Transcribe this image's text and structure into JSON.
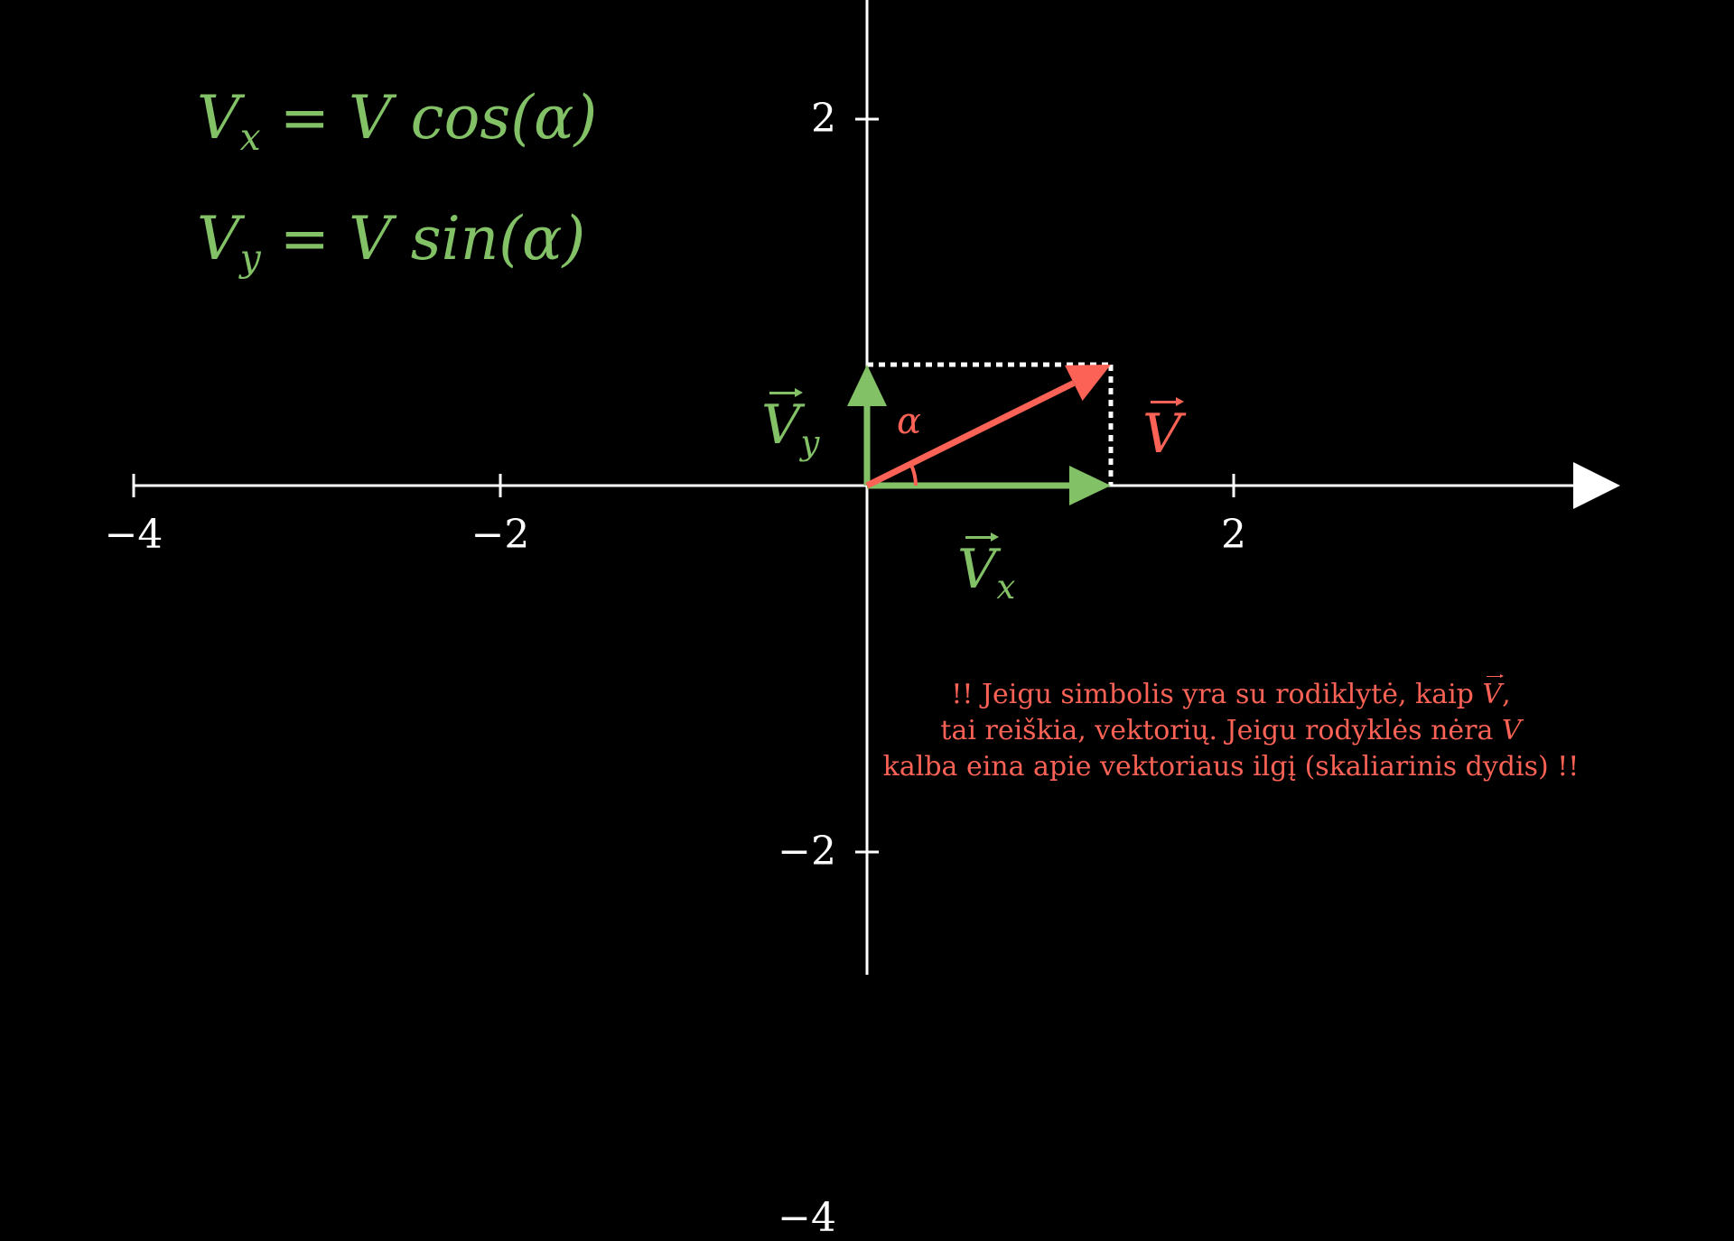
{
  "formulas": {
    "vx": {
      "lhs": "V",
      "sub": "x",
      "eq": "=",
      "rhs": "V cos(α)"
    },
    "vy": {
      "lhs": "V",
      "sub": "y",
      "eq": "=",
      "rhs": "V sin(α)"
    }
  },
  "axes": {
    "x_ticks": [
      {
        "value": -4,
        "label": "−4"
      },
      {
        "value": -2,
        "label": "−2"
      },
      {
        "value": 2,
        "label": "2"
      }
    ],
    "y_ticks": [
      {
        "value": 2,
        "label": "2"
      },
      {
        "value": -2,
        "label": "−2"
      },
      {
        "value": -4,
        "label": "−4"
      }
    ],
    "x_range": [
      -4,
      4
    ],
    "y_range": [
      -4,
      3.2
    ]
  },
  "vectors": {
    "v": {
      "label": "V",
      "color": "#fc6255",
      "from": [
        0,
        0
      ],
      "to": [
        1.33,
        0.66
      ]
    },
    "vx": {
      "label": "V",
      "sub": "x",
      "color": "#83c167",
      "from": [
        0,
        0
      ],
      "to": [
        1.33,
        0
      ]
    },
    "vy": {
      "label": "V",
      "sub": "y",
      "color": "#83c167",
      "from": [
        0,
        0
      ],
      "to": [
        0,
        0.66
      ]
    }
  },
  "angle_label": "α",
  "colors": {
    "background": "#000000",
    "axis": "#ffffff",
    "green": "#83c167",
    "red": "#fc6255"
  },
  "note": {
    "line1_pre": "!! Jeigu simbolis yra su rodiklytė, kaip ",
    "line1_sym": "V",
    "line1_post": ",",
    "line2_pre": "tai reiškia, vektorių. Jeigu rodyklės nėra ",
    "line2_sym": "V",
    "line3": "kalba eina apie vektoriaus ilgį (skaliarinis dydis) !!"
  }
}
